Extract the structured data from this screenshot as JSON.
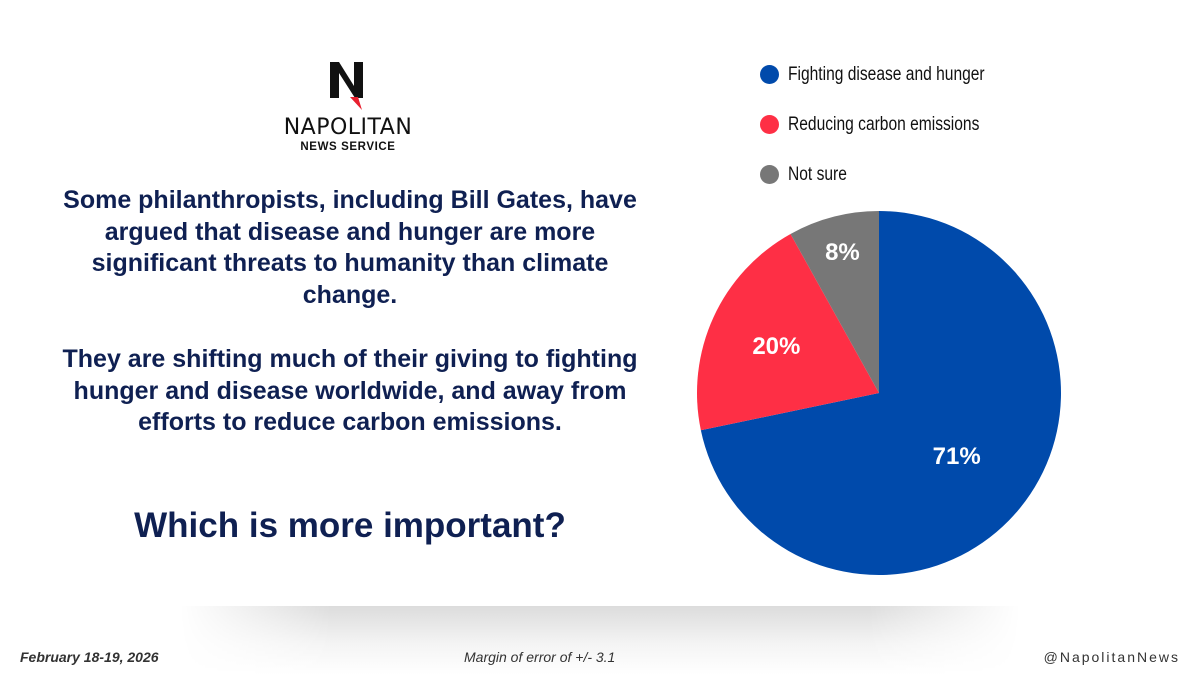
{
  "brand": {
    "name": "NAPOLITAN",
    "subtitle": "NEWS SERVICE",
    "logo_letter": "N"
  },
  "question": {
    "paragraphs": [
      "Some philanthropists, including Bill Gates, have argued that disease and hunger are more significant threats to humanity than climate change.",
      "They are shifting much of their giving to fighting hunger and disease worldwide, and away from efforts to reduce carbon emissions."
    ],
    "ask": "Which is more important?"
  },
  "footer": {
    "date": "February 18-19, 2026",
    "margin_of_error": "Margin of error of +/- 3.1",
    "handle": "@NapolitanNews"
  },
  "chart_data": {
    "type": "pie",
    "title": "Which is more important?",
    "categories": [
      "Fighting disease and hunger",
      "Reducing carbon emissions",
      "Not sure"
    ],
    "values": [
      71,
      20,
      8
    ],
    "labels": [
      "71%",
      "20%",
      "8%"
    ],
    "colors": [
      "#004aab",
      "#fe2f45",
      "#777777"
    ],
    "legend_position": "top-right",
    "start_angle_deg": 0,
    "direction": "clockwise"
  }
}
